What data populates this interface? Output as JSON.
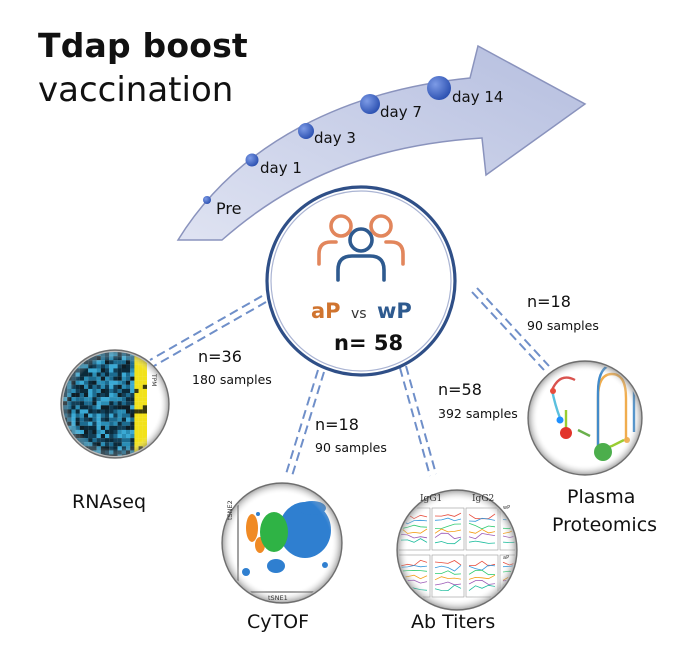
{
  "title": {
    "line1": "Tdap boost",
    "line2": "vaccination"
  },
  "timepoints": [
    "Pre",
    "day 1",
    "day 3",
    "day 7",
    "day 14"
  ],
  "center": {
    "group_a": "aP",
    "versus": "vs",
    "group_b": "wP",
    "n": "n= 58"
  },
  "modalities": [
    {
      "name": "RNAseq",
      "n": "n=36",
      "samples": "180 samples"
    },
    {
      "name": "CyTOF",
      "n": "n=18",
      "samples": "90 samples"
    },
    {
      "name": "Ab Titers",
      "n": "n=58",
      "samples": "392 samples"
    },
    {
      "name": "Plasma Proteomics",
      "name_line1": "Plasma",
      "name_line2": "Proteomics",
      "n": "n=18",
      "samples": "90 samples"
    }
  ],
  "thumbnails": {
    "rnaseq_axis": "TPM",
    "cytof_xlabel": "tSNE1",
    "cytof_ylabel": "tSNE2",
    "abtiter_panel1": "IgG1",
    "abtiter_panel2": "IgG2",
    "abtiter_panel3": "wP",
    "abtiter_panel4": "aP"
  },
  "colors": {
    "arrow_fill": "#c9cfe6",
    "arrow_stroke": "#8a93bd",
    "dot": "#3b62c4",
    "ap": "#d0742f",
    "wp": "#2e5a8f",
    "connector": "#6f8fc9",
    "circle_stroke": "#2f4f87"
  }
}
